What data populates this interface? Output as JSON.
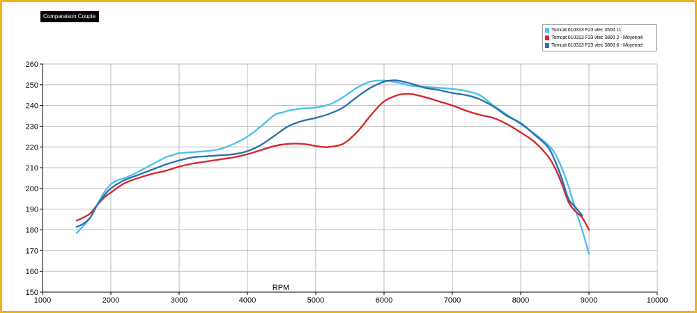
{
  "title_tag": "Comparaison Couple",
  "legend": [
    {
      "label": "Tomcat 010313 F23 vtec 3500 11",
      "color": "#4ec1ec"
    },
    {
      "label": "Tomcat 010313 F23 vtec 3800 2 - Moyenné",
      "color": "#d42a2f"
    },
    {
      "label": "Tomcat 010313 F23 vtec 3800 6 - Moyenné",
      "color": "#2e71a8"
    }
  ],
  "chart_data": {
    "type": "line",
    "title": "Comparaison Couple",
    "xlabel": "RPM",
    "ylabel": "",
    "xlim": [
      1000,
      10000
    ],
    "ylim": [
      150,
      260
    ],
    "xticks": [
      1000,
      2000,
      3000,
      4000,
      5000,
      6000,
      7000,
      8000,
      9000,
      10000
    ],
    "yticks": [
      150,
      160,
      170,
      180,
      190,
      200,
      210,
      220,
      230,
      240,
      250,
      260
    ],
    "grid": true,
    "legend_position": "top-right",
    "series": [
      {
        "name": "Tomcat 010313 F23 vtec 3500 11",
        "color": "#4ec1ec",
        "x": [
          1500,
          1600,
          1700,
          1800,
          1900,
          2000,
          2100,
          2200,
          2400,
          2600,
          2800,
          2900,
          3000,
          3200,
          3400,
          3600,
          3800,
          4000,
          4200,
          4400,
          4500,
          4600,
          4800,
          5000,
          5200,
          5400,
          5600,
          5800,
          6000,
          6200,
          6400,
          6600,
          6800,
          7000,
          7200,
          7400,
          7600,
          7800,
          8000,
          8200,
          8400,
          8500,
          8600,
          8700,
          8800,
          8900,
          9000
        ],
        "y": [
          178.5,
          182,
          186,
          192,
          198,
          202,
          204,
          205,
          208,
          211.5,
          215,
          216,
          217,
          217.5,
          218,
          219,
          221.5,
          225,
          230,
          235.5,
          236.5,
          237.5,
          238.5,
          239,
          240.5,
          244,
          248.5,
          251.5,
          252,
          251,
          249.5,
          249,
          248.5,
          248,
          247,
          245,
          240,
          235.5,
          231,
          226.5,
          221,
          217,
          210,
          201,
          190,
          180,
          168.5
        ]
      },
      {
        "name": "Tomcat 010313 F23 vtec 3800 2 - Moyenné",
        "color": "#d42a2f",
        "x": [
          1500,
          1600,
          1700,
          1800,
          1900,
          2000,
          2200,
          2400,
          2600,
          2800,
          3000,
          3200,
          3400,
          3600,
          3800,
          4000,
          4200,
          4400,
          4600,
          4800,
          5000,
          5100,
          5200,
          5400,
          5600,
          5800,
          6000,
          6200,
          6300,
          6400,
          6600,
          6800,
          7000,
          7200,
          7400,
          7600,
          7800,
          8000,
          8200,
          8400,
          8500,
          8600,
          8700,
          8800,
          8900,
          9000
        ],
        "y": [
          184.5,
          186,
          188,
          192,
          195.5,
          198,
          202.5,
          205,
          207,
          208.5,
          210.5,
          212,
          213,
          214,
          215,
          216.5,
          218.5,
          220.5,
          221.5,
          221.5,
          220.5,
          220,
          220,
          221.5,
          227,
          235,
          242,
          245,
          245.5,
          245.5,
          244,
          242,
          240,
          237.5,
          235.5,
          234,
          231,
          227,
          222.5,
          215.5,
          210,
          202.5,
          193.5,
          189,
          186,
          180
        ]
      },
      {
        "name": "Tomcat 010313 F23 vtec 3800 6 - Moyenné",
        "color": "#2e71a8",
        "x": [
          1500,
          1600,
          1700,
          1800,
          1900,
          2000,
          2200,
          2400,
          2600,
          2800,
          3000,
          3200,
          3400,
          3600,
          3800,
          4000,
          4200,
          4400,
          4600,
          4800,
          5000,
          5200,
          5400,
          5600,
          5800,
          6000,
          6100,
          6200,
          6400,
          6600,
          6800,
          7000,
          7200,
          7400,
          7600,
          7800,
          8000,
          8200,
          8400,
          8500,
          8600,
          8700,
          8800,
          8900
        ],
        "y": [
          181.5,
          183,
          186,
          192,
          196.5,
          200,
          204,
          206.5,
          209,
          211.5,
          213.5,
          215,
          215.5,
          216,
          216.5,
          218,
          221,
          225.5,
          230,
          232.5,
          234,
          236,
          239,
          244,
          248.5,
          251.5,
          252,
          252,
          250.5,
          248.5,
          247.5,
          246,
          245,
          243,
          239.5,
          235,
          231.5,
          226,
          220,
          213.5,
          205,
          195,
          191,
          187
        ]
      }
    ]
  }
}
